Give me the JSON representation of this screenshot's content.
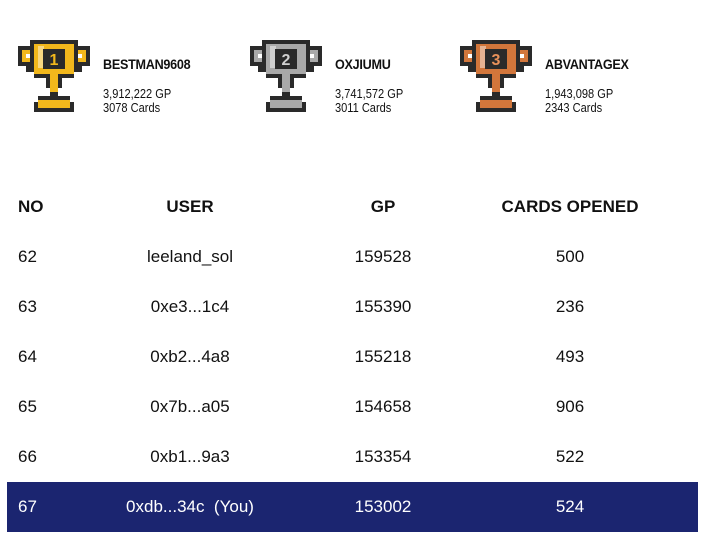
{
  "podium": [
    {
      "rank": "1",
      "name": "BESTMAN9608",
      "gp": "3,912,222 GP",
      "cards": "3078 Cards"
    },
    {
      "rank": "2",
      "name": "OXJIUMU",
      "gp": "3,741,572 GP",
      "cards": "3011 Cards"
    },
    {
      "rank": "3",
      "name": "ABVANTAGEX",
      "gp": "1,943,098 GP",
      "cards": "2343 Cards"
    }
  ],
  "table": {
    "headers": [
      "NO",
      "USER",
      "GP",
      "CARDS OPENED"
    ],
    "rows": [
      [
        "62",
        "leeland_sol",
        "159528",
        "500"
      ],
      [
        "63",
        "0xe3...1c4",
        "155390",
        "236"
      ],
      [
        "64",
        "0xb2...4a8",
        "155218",
        "493"
      ],
      [
        "65",
        "0x7b...a05",
        "154658",
        "906"
      ],
      [
        "66",
        "0xb1...9a3",
        "153354",
        "522"
      ],
      [
        "67",
        "0xdb...34c  (You)",
        "153002",
        "524"
      ]
    ]
  }
}
